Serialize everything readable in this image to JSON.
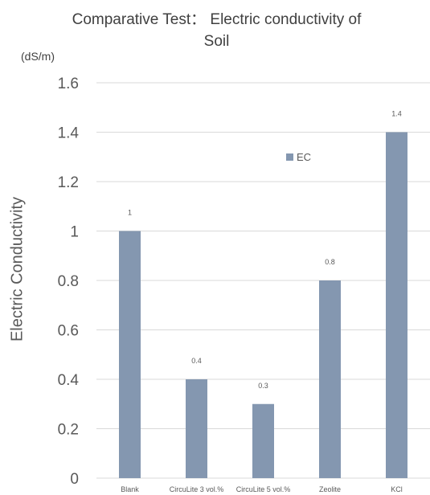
{
  "chart_data": {
    "type": "bar",
    "title": "Comparative Test： Electric conductivity of Soil",
    "title_lines": [
      "Comparative Test： Electric conductivity of",
      "Soil"
    ],
    "unit_label": "(dS/m)",
    "ylabel": "Electric Conductivity",
    "xlabel": "",
    "categories": [
      "Blank",
      "CircuLite 3 vol.%",
      "CircuLite 5 vol.%",
      "Zeolite",
      "KCl"
    ],
    "series": [
      {
        "name": "EC",
        "values": [
          1,
          0.4,
          0.3,
          0.8,
          1.4
        ],
        "labels": [
          "1",
          "0.4",
          "0.3",
          "0.8",
          "1.4"
        ],
        "color": "#8497B0"
      }
    ],
    "ylim": [
      0,
      1.6
    ],
    "yticks": [
      0,
      0.2,
      0.4,
      0.6,
      0.8,
      1,
      1.2,
      1.4,
      1.6
    ],
    "ytick_labels": [
      "0",
      "0.2",
      "0.4",
      "0.6",
      "0.8",
      "1",
      "1.2",
      "1.4",
      "1.6"
    ],
    "grid": true,
    "legend_position": "top-right",
    "gridline_color": "#D9D9D9"
  }
}
